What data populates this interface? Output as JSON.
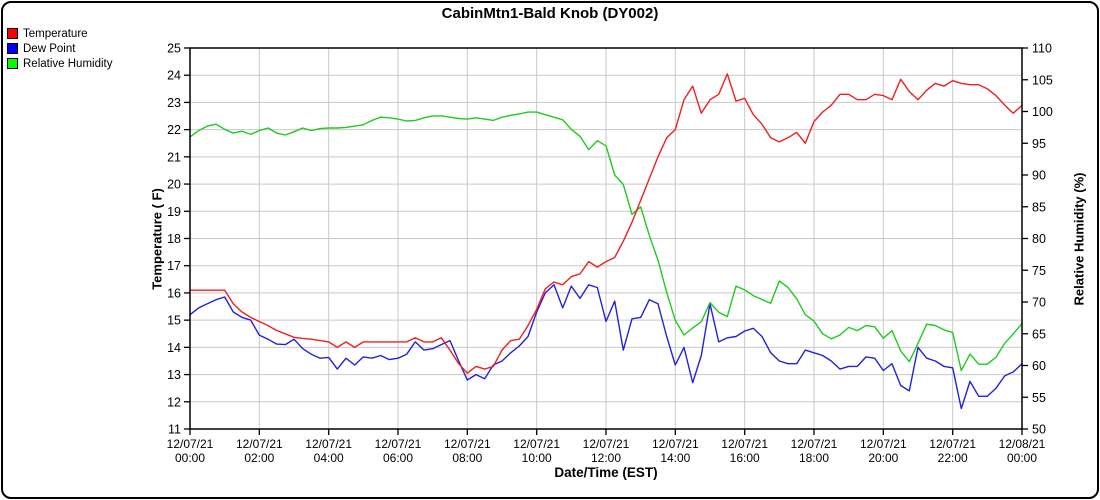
{
  "title": "CabinMtn1-Bald Knob (DY002)",
  "legend": [
    {
      "label": "Temperature",
      "color": "#ff0000"
    },
    {
      "label": "Dew Point",
      "color": "#0000ff"
    },
    {
      "label": "Relative Humidity",
      "color": "#00ff00"
    }
  ],
  "chart_data": {
    "type": "line",
    "title": "CabinMtn1-Bald Knob (DY002)",
    "xlabel": "Date/Time (EST)",
    "grid": true,
    "sample_interval_minutes": 15,
    "x_range": [
      "12/07/21 00:00",
      "12/08/21 00:00"
    ],
    "x_ticks": [
      {
        "date": "12/07/21",
        "time": "00:00"
      },
      {
        "date": "12/07/21",
        "time": "02:00"
      },
      {
        "date": "12/07/21",
        "time": "04:00"
      },
      {
        "date": "12/07/21",
        "time": "06:00"
      },
      {
        "date": "12/07/21",
        "time": "08:00"
      },
      {
        "date": "12/07/21",
        "time": "10:00"
      },
      {
        "date": "12/07/21",
        "time": "12:00"
      },
      {
        "date": "12/07/21",
        "time": "14:00"
      },
      {
        "date": "12/07/21",
        "time": "16:00"
      },
      {
        "date": "12/07/21",
        "time": "18:00"
      },
      {
        "date": "12/07/21",
        "time": "20:00"
      },
      {
        "date": "12/07/21",
        "time": "22:00"
      },
      {
        "date": "12/08/21",
        "time": "00:00"
      }
    ],
    "left_axis": {
      "label": "Temperature ( F)",
      "min": 11,
      "max": 25,
      "tick_step": 1
    },
    "right_axis": {
      "label": "Relative Humidity (%)",
      "min": 50,
      "max": 110,
      "tick_step": 5
    },
    "series": [
      {
        "name": "Temperature",
        "axis": "left",
        "color": "#f02020",
        "values": [
          16.1,
          16.1,
          16.1,
          16.1,
          16.1,
          15.6,
          15.3,
          15.1,
          14.95,
          14.8,
          14.62,
          14.5,
          14.37,
          14.33,
          14.3,
          14.25,
          14.2,
          14.0,
          14.2,
          14.0,
          14.2,
          14.2,
          14.2,
          14.2,
          14.2,
          14.2,
          14.35,
          14.2,
          14.2,
          14.35,
          13.9,
          13.4,
          13.05,
          13.3,
          13.2,
          13.3,
          13.9,
          14.25,
          14.3,
          14.8,
          15.4,
          16.15,
          16.4,
          16.3,
          16.6,
          16.7,
          17.15,
          16.95,
          17.15,
          17.3,
          17.9,
          18.6,
          19.4,
          20.2,
          21.0,
          21.7,
          22.0,
          23.1,
          23.6,
          22.6,
          23.1,
          23.3,
          24.05,
          23.05,
          23.15,
          22.55,
          22.2,
          21.7,
          21.55,
          21.7,
          21.9,
          21.5,
          22.3,
          22.65,
          22.9,
          23.3,
          23.3,
          23.1,
          23.1,
          23.3,
          23.25,
          23.1,
          23.85,
          23.4,
          23.1,
          23.45,
          23.7,
          23.6,
          23.8,
          23.7,
          23.65,
          23.65,
          23.5,
          23.25,
          22.9,
          22.6,
          22.9
        ]
      },
      {
        "name": "Dew Point",
        "axis": "left",
        "color": "#2222dd",
        "values": [
          15.2,
          15.45,
          15.6,
          15.75,
          15.85,
          15.3,
          15.1,
          15.0,
          14.45,
          14.3,
          14.12,
          14.1,
          14.3,
          13.95,
          13.75,
          13.6,
          13.63,
          13.2,
          13.6,
          13.35,
          13.65,
          13.6,
          13.7,
          13.55,
          13.6,
          13.75,
          14.2,
          13.9,
          13.95,
          14.1,
          14.25,
          13.5,
          12.8,
          13.0,
          12.85,
          13.35,
          13.5,
          13.8,
          14.05,
          14.4,
          15.3,
          16.0,
          16.3,
          15.45,
          16.25,
          15.8,
          16.3,
          16.2,
          14.95,
          15.7,
          13.9,
          15.05,
          15.1,
          15.75,
          15.6,
          14.4,
          13.35,
          14.0,
          12.7,
          13.7,
          15.6,
          14.2,
          14.35,
          14.4,
          14.6,
          14.7,
          14.4,
          13.8,
          13.5,
          13.4,
          13.4,
          13.9,
          13.8,
          13.7,
          13.5,
          13.2,
          13.3,
          13.3,
          13.65,
          13.6,
          13.15,
          13.4,
          12.6,
          12.4,
          14.0,
          13.6,
          13.5,
          13.3,
          13.25,
          11.75,
          12.75,
          12.2,
          12.2,
          12.5,
          12.95,
          13.1,
          13.4
        ]
      },
      {
        "name": "Relative Humidity",
        "axis": "right",
        "color": "#1ecc1e",
        "values": [
          96.0,
          97.0,
          97.7,
          98.0,
          97.2,
          96.6,
          96.9,
          96.4,
          97.0,
          97.4,
          96.6,
          96.3,
          96.8,
          97.4,
          97.0,
          97.3,
          97.4,
          97.4,
          97.5,
          97.7,
          97.9,
          98.6,
          99.1,
          99.0,
          98.8,
          98.5,
          98.6,
          99.0,
          99.3,
          99.3,
          99.1,
          98.9,
          98.8,
          99.0,
          98.8,
          98.6,
          99.1,
          99.4,
          99.6,
          99.9,
          99.9,
          99.5,
          99.1,
          98.7,
          97.2,
          96.1,
          94.0,
          95.4,
          94.6,
          90.0,
          88.5,
          83.8,
          85.0,
          80.5,
          76.6,
          71.5,
          67.1,
          64.8,
          65.9,
          66.9,
          69.9,
          68.4,
          67.7,
          72.5,
          71.9,
          71.0,
          70.4,
          69.8,
          73.3,
          72.3,
          70.5,
          68.0,
          67.0,
          65.0,
          64.2,
          64.8,
          66.0,
          65.5,
          66.3,
          66.1,
          64.3,
          65.5,
          62.3,
          60.6,
          63.5,
          66.5,
          66.3,
          65.6,
          65.2,
          59.2,
          61.8,
          60.2,
          60.2,
          61.3,
          63.5,
          65.0,
          66.6
        ]
      }
    ]
  }
}
